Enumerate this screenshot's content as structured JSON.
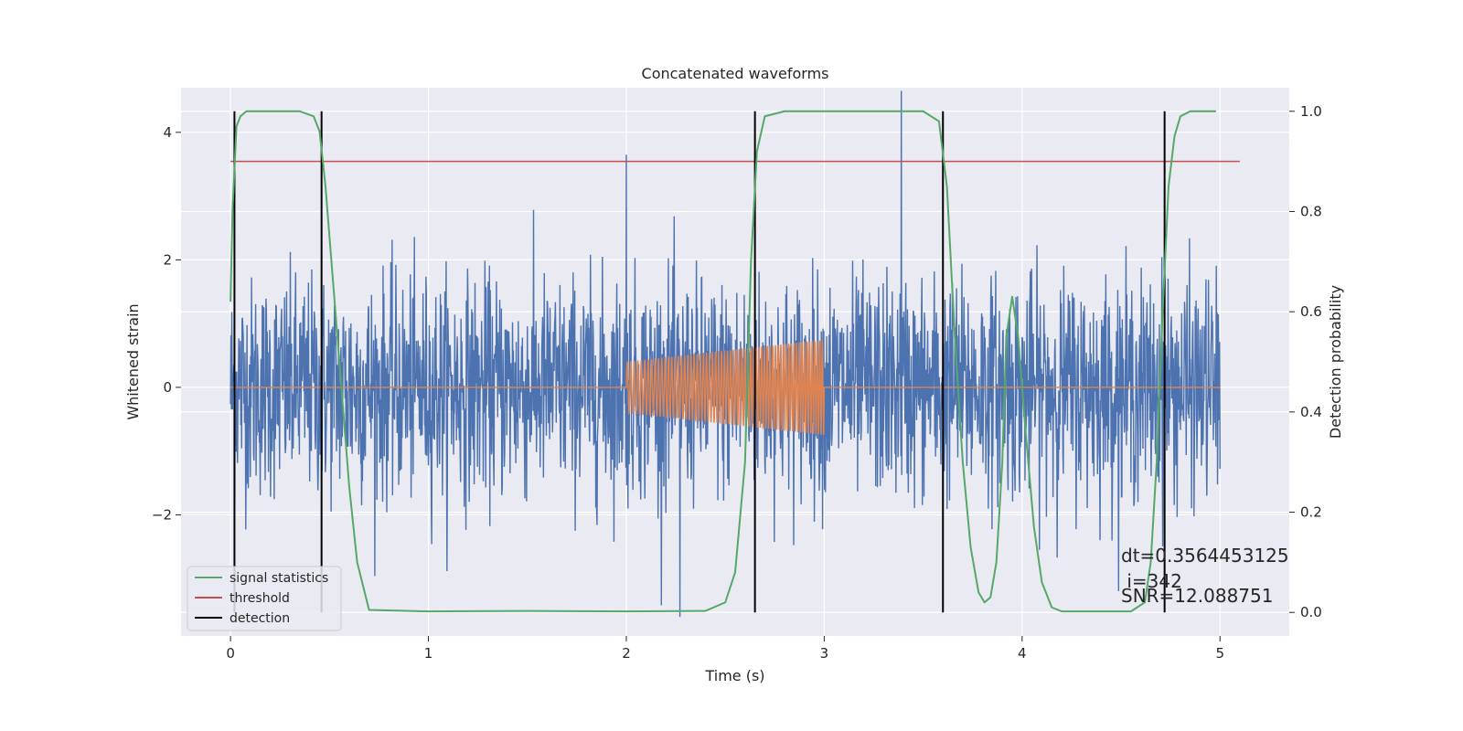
{
  "chart_data": {
    "type": "line",
    "title": "Concatenated waveforms",
    "xlabel": "Time (s)",
    "ylabel": "Whitened strain",
    "y2label": "Detection probability",
    "xlim": [
      -0.25,
      5.35
    ],
    "ylim": [
      -3.9,
      4.7
    ],
    "y2lim": [
      -0.047,
      1.047
    ],
    "x_ticks": [
      0,
      1,
      2,
      3,
      4,
      5
    ],
    "x_tick_labels": [
      "0",
      "1",
      "2",
      "3",
      "4",
      "5"
    ],
    "y_ticks": [
      -2,
      0,
      2,
      4
    ],
    "y_tick_labels": [
      "−2",
      "0",
      "2",
      "4"
    ],
    "y2_ticks": [
      0.0,
      0.2,
      0.4,
      0.6,
      0.8,
      1.0
    ],
    "y2_tick_labels": [
      "0.0",
      "0.2",
      "0.4",
      "0.6",
      "0.8",
      "1.0"
    ],
    "grid": true,
    "legend_position": "lower-left",
    "colors": {
      "strain": "#4c72b0",
      "injected": "#dd8452",
      "signal_statistics": "#55a868",
      "threshold": "#c44e52",
      "detection": "#000000",
      "background": "#eaeaf2",
      "grid": "#ffffff"
    },
    "series": [
      {
        "name": "whitened strain (noise + signal)",
        "axis": "left",
        "x_range": [
          0,
          5
        ],
        "amplitude_range": [
          -3.6,
          4.65
        ],
        "notable_peaks": [
          {
            "x": 2.27,
            "y": -3.6
          },
          {
            "x": 3.39,
            "y": 4.65
          },
          {
            "x": 2.0,
            "y": 3.65
          }
        ]
      },
      {
        "name": "injected waveform",
        "axis": "left",
        "x_range": [
          0,
          5
        ],
        "chirp": {
          "t_start": 2.0,
          "t_end": 3.0,
          "amp_start": 0.4,
          "amp_end": 0.75
        }
      },
      {
        "name": "signal statistics",
        "axis": "right",
        "x": [
          0.0,
          0.01,
          0.03,
          0.05,
          0.08,
          0.15,
          0.35,
          0.42,
          0.45,
          0.48,
          0.52,
          0.56,
          0.6,
          0.64,
          0.7,
          1.0,
          1.5,
          2.0,
          2.4,
          2.5,
          2.55,
          2.6,
          2.63,
          2.66,
          2.7,
          2.8,
          3.5,
          3.58,
          3.62,
          3.66,
          3.7,
          3.74,
          3.78,
          3.81,
          3.84,
          3.87,
          3.9,
          3.92,
          3.95,
          3.98,
          4.02,
          4.06,
          4.1,
          4.15,
          4.2,
          4.3,
          4.55,
          4.62,
          4.65,
          4.68,
          4.71,
          4.74,
          4.77,
          4.8,
          4.85,
          4.9,
          4.98
        ],
        "values": [
          0.62,
          0.8,
          0.97,
          0.99,
          1.0,
          1.0,
          1.0,
          0.99,
          0.96,
          0.85,
          0.65,
          0.45,
          0.25,
          0.1,
          0.005,
          0.002,
          0.003,
          0.002,
          0.003,
          0.02,
          0.08,
          0.3,
          0.7,
          0.92,
          0.99,
          1.0,
          1.0,
          0.98,
          0.85,
          0.55,
          0.3,
          0.13,
          0.04,
          0.02,
          0.03,
          0.1,
          0.3,
          0.55,
          0.63,
          0.55,
          0.35,
          0.17,
          0.06,
          0.01,
          0.002,
          0.002,
          0.002,
          0.02,
          0.1,
          0.3,
          0.6,
          0.85,
          0.95,
          0.99,
          1.0,
          1.0,
          1.0
        ]
      },
      {
        "name": "threshold",
        "axis": "right",
        "x": [
          0,
          5.1
        ],
        "values": [
          0.9,
          0.9
        ]
      },
      {
        "name": "detection",
        "axis": "vlines",
        "x": [
          0.02,
          0.46,
          2.65,
          3.6,
          4.72
        ]
      }
    ],
    "legend": [
      {
        "label": "signal statistics",
        "color": "#55a868"
      },
      {
        "label": "threshold",
        "color": "#c44e52"
      },
      {
        "label": "detection",
        "color": "#000000"
      }
    ],
    "annotation": {
      "line1": "dt=0.3564453125",
      "line2": " i=342",
      "line3": "SNR=12.088751"
    }
  }
}
